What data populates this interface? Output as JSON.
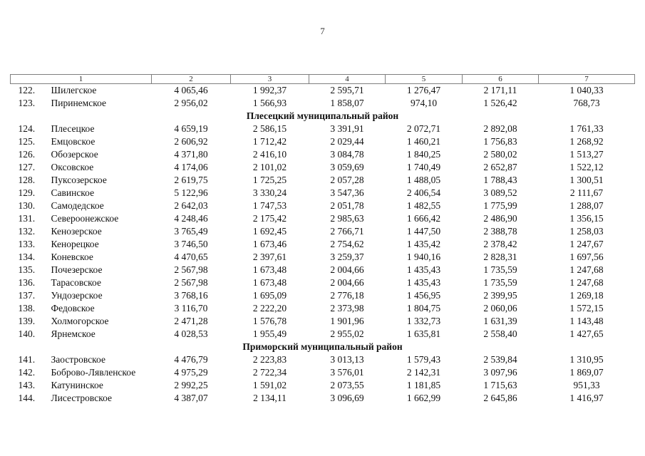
{
  "page": {
    "number": "7"
  },
  "table": {
    "columns": [
      "1",
      "2",
      "3",
      "4",
      "5",
      "6",
      "7"
    ],
    "rows": [
      {
        "type": "data",
        "num": "122.",
        "name": "Шилегское",
        "values": [
          "4 065,46",
          "1 992,37",
          "2 595,71",
          "1 276,47",
          "2 171,11",
          "1 040,33"
        ]
      },
      {
        "type": "data",
        "num": "123.",
        "name": "Пиринемское",
        "values": [
          "2 956,02",
          "1 566,93",
          "1 858,07",
          "974,10",
          "1 526,42",
          "768,73"
        ]
      },
      {
        "type": "section",
        "title": "Плесецкий муниципальный район"
      },
      {
        "type": "data",
        "num": "124.",
        "name": "Плесецкое",
        "values": [
          "4 659,19",
          "2 586,15",
          "3 391,91",
          "2 072,71",
          "2 892,08",
          "1 761,33"
        ]
      },
      {
        "type": "data",
        "num": "125.",
        "name": "Емцовское",
        "values": [
          "2 606,92",
          "1 712,42",
          "2 029,44",
          "1 460,21",
          "1 756,83",
          "1 268,92"
        ]
      },
      {
        "type": "data",
        "num": "126.",
        "name": "Обозерское",
        "values": [
          "4 371,80",
          "2 416,10",
          "3 084,78",
          "1 840,25",
          "2 580,02",
          "1 513,27"
        ]
      },
      {
        "type": "data",
        "num": "127.",
        "name": "Оксовское",
        "values": [
          "4 174,06",
          "2 101,02",
          "3 059,69",
          "1 740,49",
          "2 652,87",
          "1 522,12"
        ]
      },
      {
        "type": "data",
        "num": "128.",
        "name": "Пуксозерское",
        "values": [
          "2 619,75",
          "1 725,25",
          "2 057,28",
          "1 488,05",
          "1 788,43",
          "1 300,51"
        ]
      },
      {
        "type": "data",
        "num": "129.",
        "name": "Савинское",
        "values": [
          "5 122,96",
          "3 330,24",
          "3 547,36",
          "2 406,54",
          "3 089,52",
          "2 111,67"
        ]
      },
      {
        "type": "data",
        "num": "130.",
        "name": "Самодедское",
        "values": [
          "2 642,03",
          "1 747,53",
          "2 051,78",
          "1 482,55",
          "1 775,99",
          "1 288,07"
        ]
      },
      {
        "type": "data",
        "num": "131.",
        "name": "Североонежское",
        "values": [
          "4 248,46",
          "2 175,42",
          "2 985,63",
          "1 666,42",
          "2 486,90",
          "1 356,15"
        ]
      },
      {
        "type": "data",
        "num": "132.",
        "name": "Кенозерское",
        "values": [
          "3 765,49",
          "1 692,45",
          "2 766,71",
          "1 447,50",
          "2 388,78",
          "1 258,03"
        ]
      },
      {
        "type": "data",
        "num": "133.",
        "name": "Кенорецкое",
        "values": [
          "3 746,50",
          "1 673,46",
          "2 754,62",
          "1 435,42",
          "2 378,42",
          "1 247,67"
        ]
      },
      {
        "type": "data",
        "num": "134.",
        "name": "Коневское",
        "values": [
          "4 470,65",
          "2 397,61",
          "3 259,37",
          "1 940,16",
          "2 828,31",
          "1 697,56"
        ]
      },
      {
        "type": "data",
        "num": "135.",
        "name": "Почезерское",
        "values": [
          "2 567,98",
          "1 673,48",
          "2 004,66",
          "1 435,43",
          "1 735,59",
          "1 247,68"
        ]
      },
      {
        "type": "data",
        "num": "136.",
        "name": "Тарасовское",
        "values": [
          "2 567,98",
          "1 673,48",
          "2 004,66",
          "1 435,43",
          "1 735,59",
          "1 247,68"
        ]
      },
      {
        "type": "data",
        "num": "137.",
        "name": "Ундозерское",
        "values": [
          "3 768,16",
          "1 695,09",
          "2 776,18",
          "1 456,95",
          "2 399,95",
          "1 269,18"
        ]
      },
      {
        "type": "data",
        "num": "138.",
        "name": "Федовское",
        "values": [
          "3 116,70",
          "2 222,20",
          "2 373,98",
          "1 804,75",
          "2 060,06",
          "1 572,15"
        ]
      },
      {
        "type": "data",
        "num": "139.",
        "name": "Холмогорское",
        "values": [
          "2 471,28",
          "1 576,78",
          "1 901,96",
          "1 332,73",
          "1 631,39",
          "1 143,48"
        ]
      },
      {
        "type": "data",
        "num": "140.",
        "name": "Ярнемское",
        "values": [
          "4 028,53",
          "1 955,49",
          "2 955,02",
          "1 635,81",
          "2 558,40",
          "1 427,65"
        ]
      },
      {
        "type": "section",
        "title": "Приморский муниципальный район"
      },
      {
        "type": "data",
        "num": "141.",
        "name": "Заостровское",
        "values": [
          "4 476,79",
          "2 223,83",
          "3 013,13",
          "1 579,43",
          "2 539,84",
          "1 310,95"
        ]
      },
      {
        "type": "data",
        "num": "142.",
        "name": "Боброво-Лявленское",
        "values": [
          "4 975,29",
          "2 722,34",
          "3 576,01",
          "2 142,31",
          "3 097,96",
          "1 869,07"
        ]
      },
      {
        "type": "data",
        "num": "143.",
        "name": "Катунинское",
        "values": [
          "2 992,25",
          "1 591,02",
          "2 073,55",
          "1 181,85",
          "1 715,63",
          "951,33"
        ]
      },
      {
        "type": "data",
        "num": "144.",
        "name": "Лисестровское",
        "values": [
          "4 387,07",
          "2 134,11",
          "3 096,69",
          "1 662,99",
          "2 645,86",
          "1 416,97"
        ]
      }
    ]
  }
}
